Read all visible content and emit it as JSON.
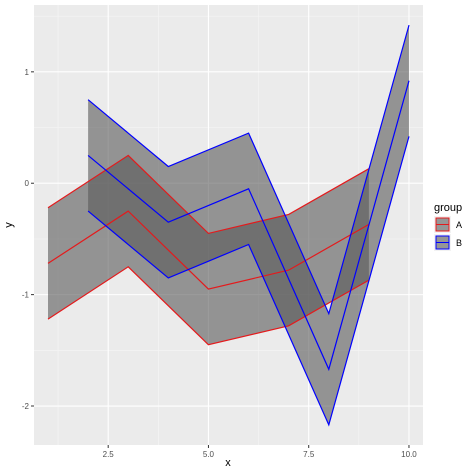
{
  "chart_data": {
    "type": "area",
    "description_free": true,
    "xlabel": "x",
    "ylabel": "y",
    "xlim": [
      0.65,
      10.35
    ],
    "ylim": [
      -2.35,
      1.6
    ],
    "xticks": [
      2.5,
      5.0,
      7.5,
      10.0
    ],
    "xtick_labels": [
      "2.5",
      "5.0",
      "7.5",
      "10.0"
    ],
    "yticks": [
      -2,
      -1,
      0,
      1
    ],
    "ytick_labels": [
      "-2",
      "-1",
      "0",
      "1"
    ],
    "grid": true,
    "legend": {
      "title": "group",
      "placement": "right",
      "entries": [
        {
          "label": "A",
          "color": "#e41a1c"
        },
        {
          "label": "B",
          "color": "#0000ff"
        }
      ]
    },
    "band_fill": "#595959",
    "band_opacity": 0.6,
    "series": [
      {
        "name": "A",
        "color": "#e41a1c",
        "x": [
          1,
          3,
          5,
          7,
          9
        ],
        "y": [
          -0.72,
          -0.25,
          -0.95,
          -0.78,
          -0.37
        ],
        "ymin": [
          -1.22,
          -0.75,
          -1.45,
          -1.28,
          -0.87
        ],
        "ymax": [
          -0.22,
          0.25,
          -0.45,
          -0.28,
          0.13
        ]
      },
      {
        "name": "B",
        "color": "#0000ff",
        "x": [
          2,
          4,
          6,
          8,
          10
        ],
        "y": [
          0.25,
          -0.35,
          -0.05,
          -1.67,
          0.92
        ],
        "ymin": [
          -0.25,
          -0.85,
          -0.55,
          -2.17,
          0.42
        ],
        "ymax": [
          0.75,
          0.15,
          0.45,
          -1.17,
          1.42
        ]
      }
    ]
  }
}
